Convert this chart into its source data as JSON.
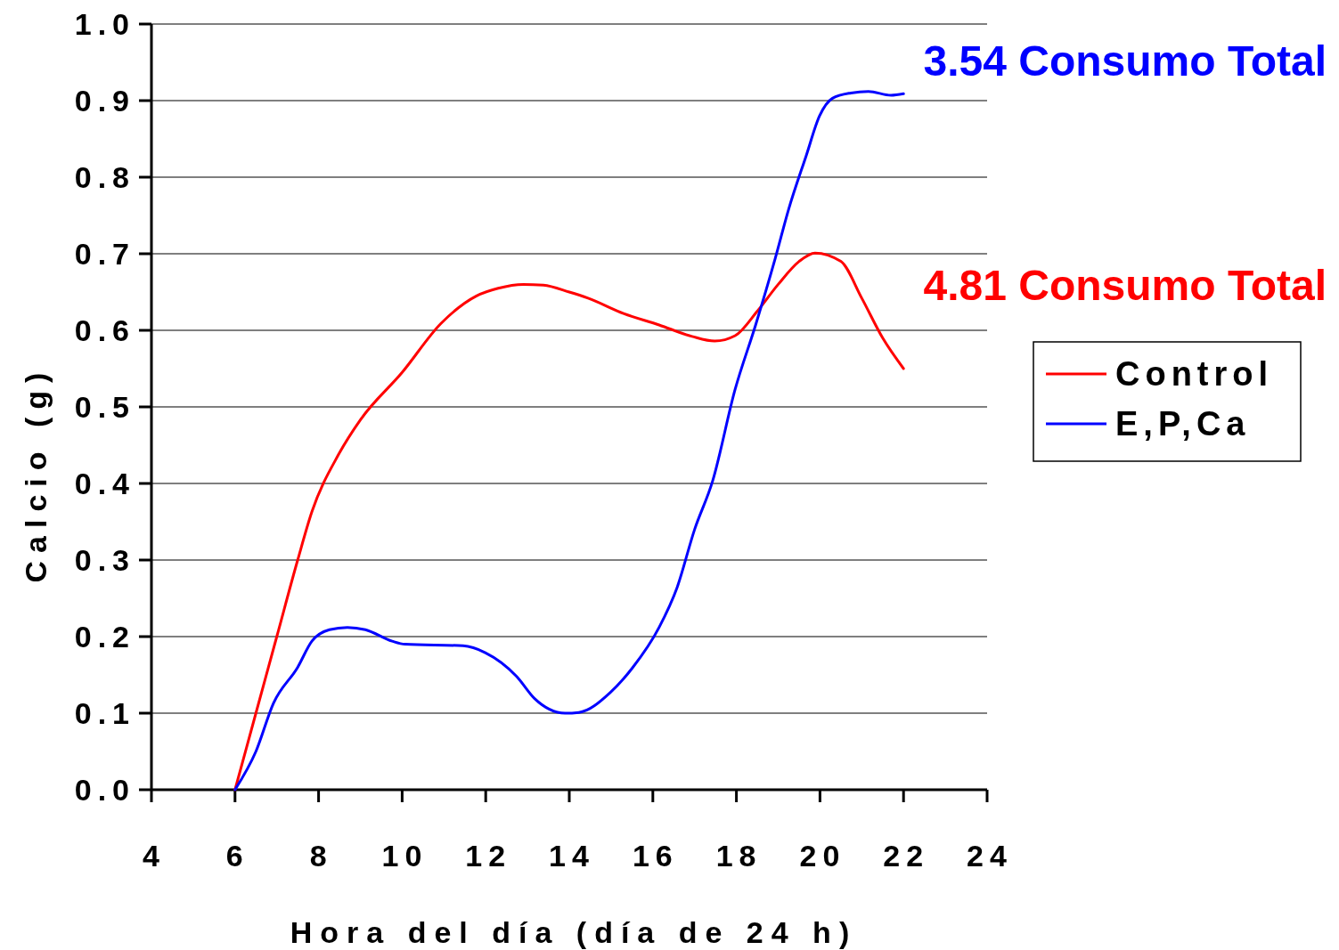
{
  "chart_data": {
    "type": "line",
    "xlabel": "Hora del día (día de 24 h)",
    "ylabel": "Calcio (g)",
    "xlim": [
      4,
      24
    ],
    "xticks": [
      4,
      6,
      8,
      10,
      12,
      14,
      16,
      18,
      20,
      22,
      24
    ],
    "ylim": [
      0,
      1
    ],
    "yticks": [
      {
        "value": 0,
        "label": "0.0"
      },
      {
        "value": 0.1,
        "label": "0.1"
      },
      {
        "value": 0.2,
        "label": "0.2"
      },
      {
        "value": 0.3,
        "label": "0.3"
      },
      {
        "value": 0.4,
        "label": "0.4"
      },
      {
        "value": 0.5,
        "label": "0.5"
      },
      {
        "value": 0.6,
        "label": "0.6"
      },
      {
        "value": 0.7,
        "label": "0.7"
      },
      {
        "value": 0.8,
        "label": "0.8"
      },
      {
        "value": 0.9,
        "label": "0.9"
      },
      {
        "value": 1,
        "label": "1.0"
      }
    ],
    "grid": "y",
    "legend": "right",
    "marker": "none",
    "line_style": "solid",
    "series": [
      {
        "name": "Control",
        "color": "#ff0000",
        "x": [
          6,
          6.5,
          7,
          7.5,
          7.84,
          8.48,
          9,
          10,
          10.93,
          11.78,
          12.3,
          12.9,
          13.38,
          14,
          14.45,
          15.3,
          16.15,
          16.94,
          17.48,
          17.97,
          18.5,
          19,
          19.5,
          19.88,
          20.5,
          21,
          21.5,
          22
        ],
        "values": [
          0,
          0.1,
          0.2,
          0.3,
          0.363,
          0.438,
          0.483,
          0.545,
          0.609,
          0.645,
          0.655,
          0.66,
          0.659,
          0.65,
          0.642,
          0.622,
          0.607,
          0.592,
          0.586,
          0.593,
          0.625,
          0.66,
          0.69,
          0.701,
          0.69,
          0.642,
          0.59,
          0.55
        ]
      },
      {
        "name": "E,P,Ca",
        "color": "#0000ff",
        "x": [
          6,
          6.5,
          6.92,
          7.5,
          7.84,
          8.26,
          8.69,
          9.12,
          9.76,
          10.07,
          11.46,
          11.99,
          12.74,
          13.17,
          13.9,
          14.23,
          14.98,
          15.51,
          16.15,
          16.58,
          17,
          17.43,
          17.97,
          18.46,
          18.93,
          19.25,
          19.67,
          19.99,
          20.3,
          20.74,
          21.16,
          21.7,
          22
        ],
        "values": [
          0,
          0.05,
          0.113,
          0.16,
          0.194,
          0.209,
          0.212,
          0.209,
          0.194,
          0.19,
          0.188,
          0.179,
          0.148,
          0.119,
          0.1,
          0.101,
          0.127,
          0.159,
          0.212,
          0.264,
          0.34,
          0.403,
          0.523,
          0.607,
          0.694,
          0.758,
          0.828,
          0.88,
          0.903,
          0.91,
          0.912,
          0.907,
          0.909
        ]
      }
    ],
    "annotations": [
      "4.81 Consumo Total",
      "3.54 Consumo Total"
    ]
  }
}
